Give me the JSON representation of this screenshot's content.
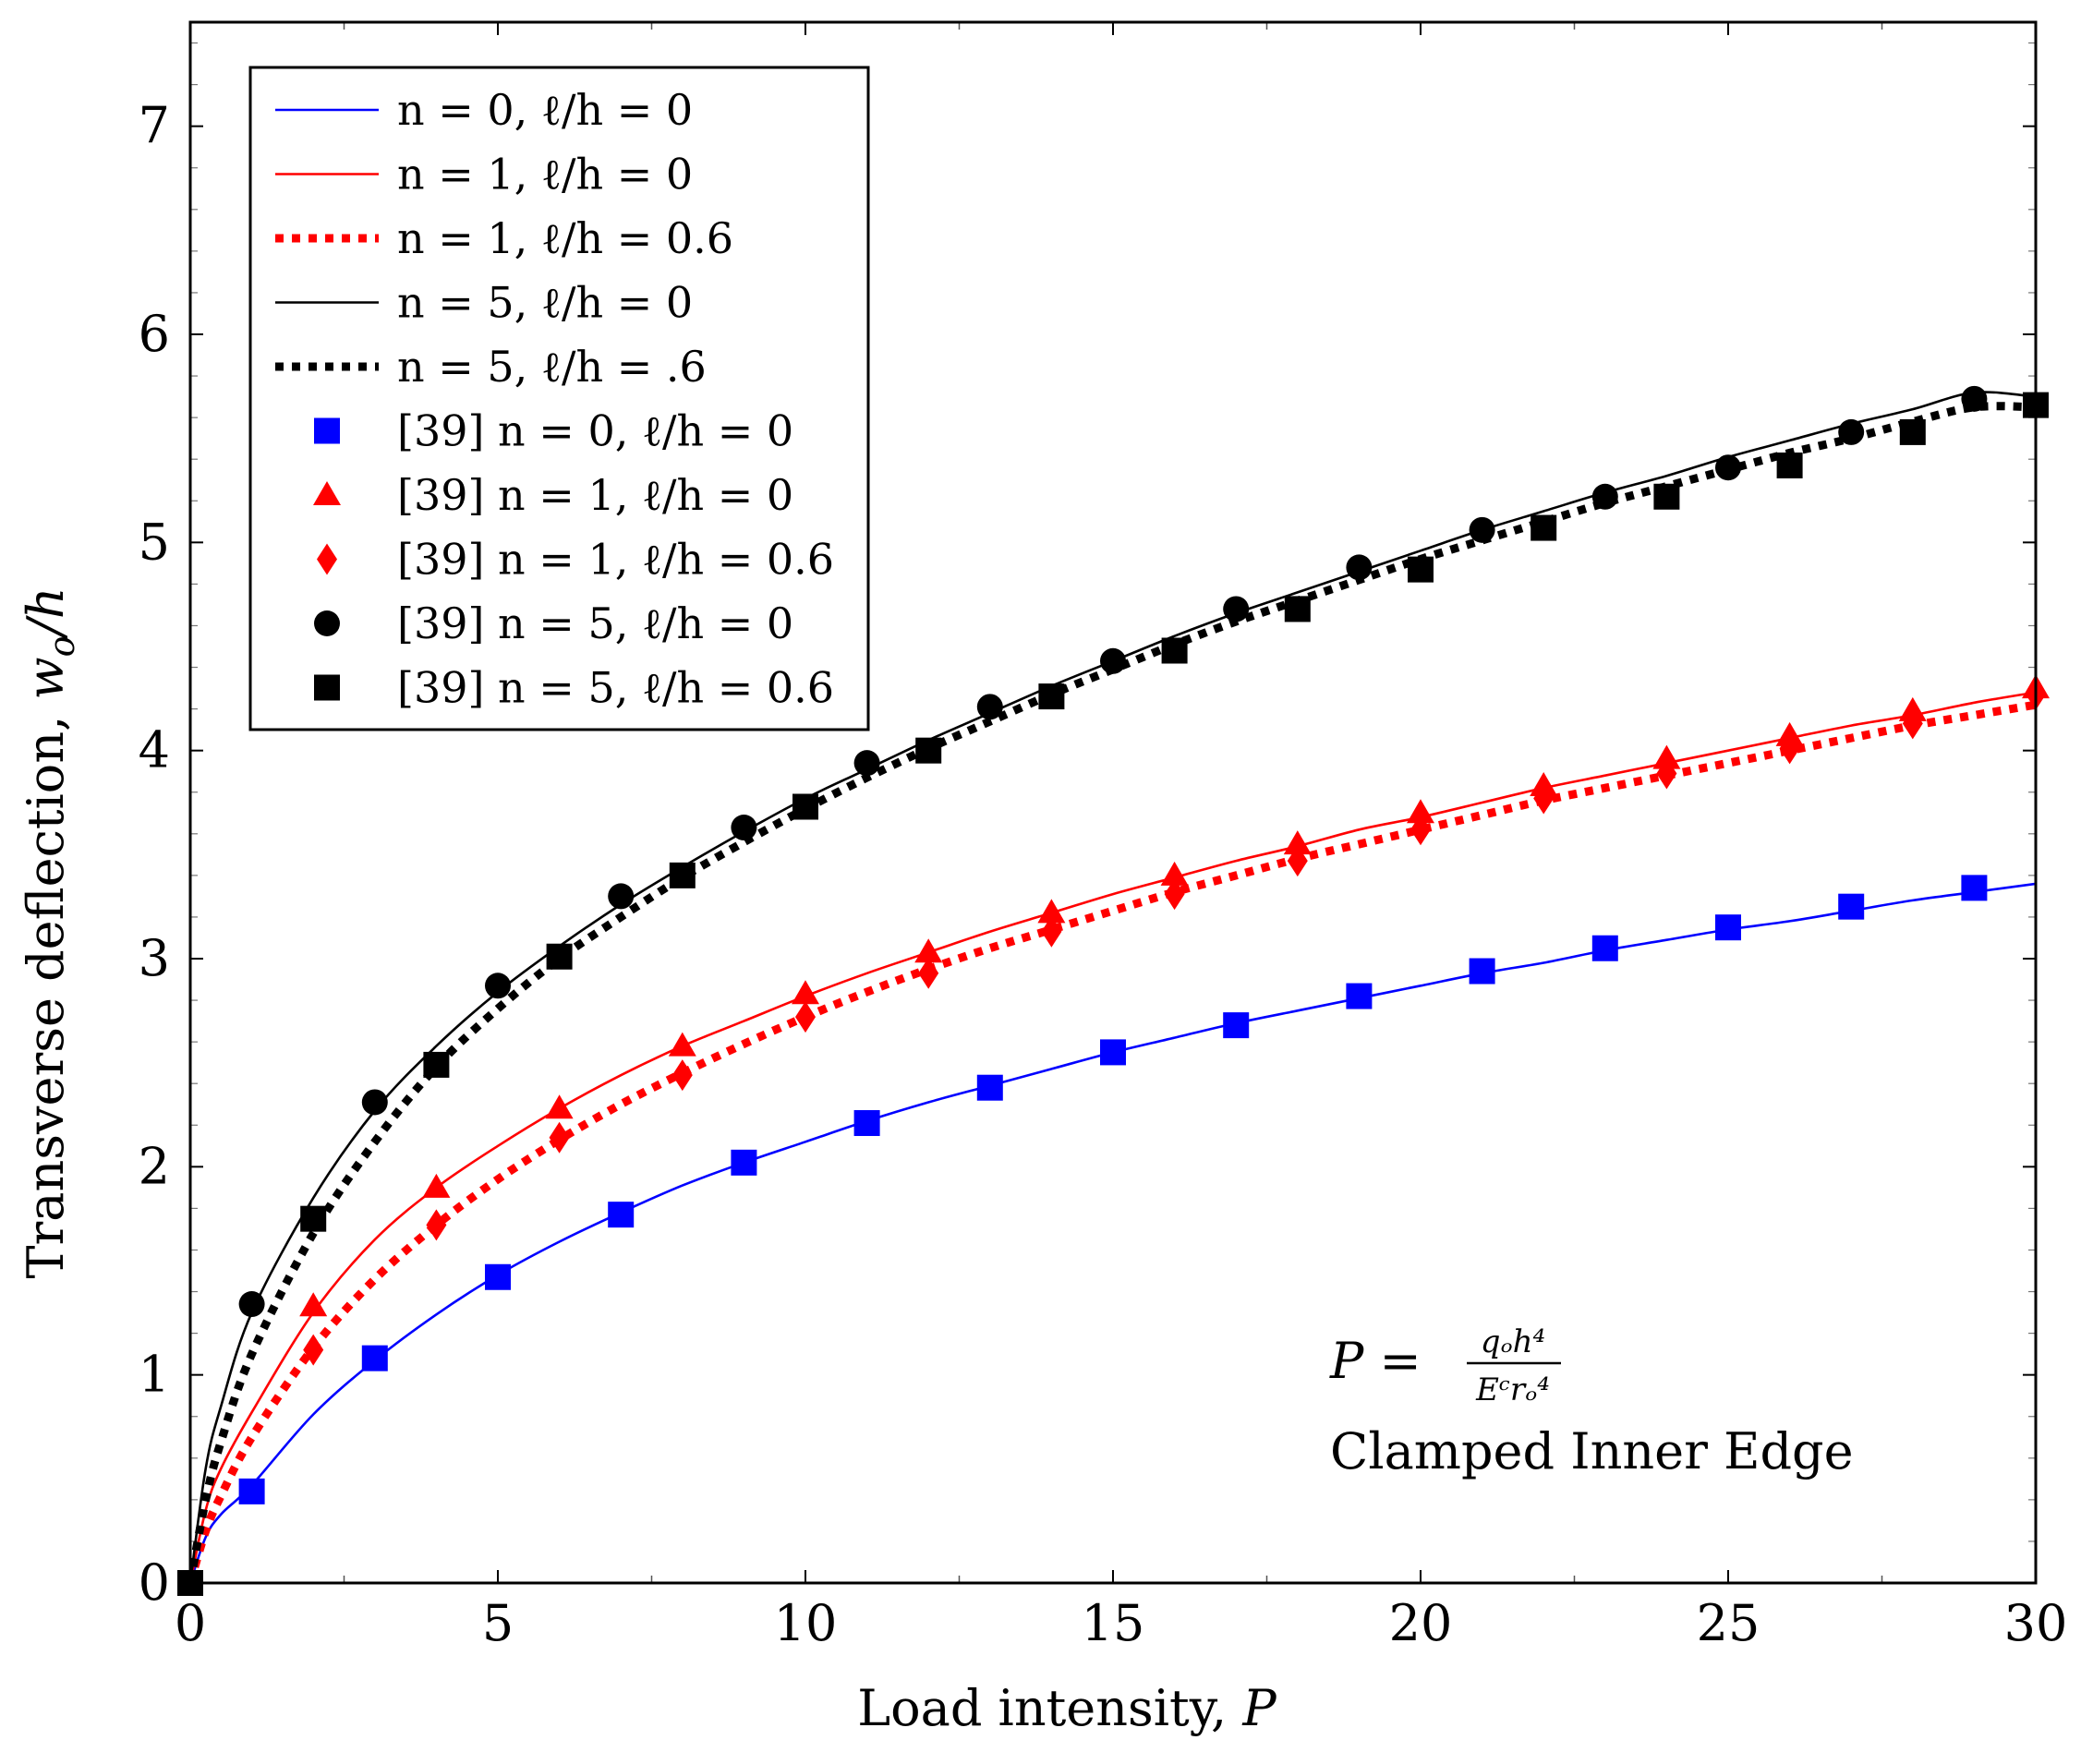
{
  "chart_data": {
    "type": "line",
    "title": "",
    "xlabel": "Load intensity, ",
    "xlabel_var": "P",
    "ylabel": "Transverse deflection, ",
    "ylabel_var": "w",
    "ylabel_sub": "o",
    "ylabel_tail": "/h",
    "xlim": [
      0,
      30
    ],
    "ylim": [
      0,
      7.5
    ],
    "xticks": [
      0,
      5,
      10,
      15,
      20,
      25,
      30
    ],
    "yticks": [
      0,
      1,
      2,
      3,
      4,
      5,
      6,
      7
    ],
    "legend_position": "top-left",
    "series": [
      {
        "name": "n = 0, ℓ/h = 0",
        "color": "#0000ff",
        "style": "solid",
        "x": [
          0,
          0.25,
          0.5,
          1,
          2,
          3,
          4,
          5,
          6,
          7,
          8,
          9,
          10,
          11,
          12,
          13,
          14,
          15,
          16,
          17,
          18,
          19,
          20,
          21,
          22,
          23,
          24,
          25,
          26,
          27,
          28,
          29,
          30
        ],
        "y": [
          0,
          0.22,
          0.33,
          0.47,
          0.81,
          1.07,
          1.29,
          1.48,
          1.64,
          1.78,
          1.91,
          2.02,
          2.12,
          2.22,
          2.31,
          2.39,
          2.47,
          2.55,
          2.62,
          2.69,
          2.75,
          2.81,
          2.87,
          2.93,
          2.98,
          3.04,
          3.09,
          3.14,
          3.18,
          3.23,
          3.28,
          3.32,
          3.36
        ]
      },
      {
        "name": "n = 1, ℓ/h = 0",
        "color": "#ff0000",
        "style": "solid",
        "x": [
          0,
          0.25,
          0.5,
          1,
          2,
          3,
          4,
          5,
          6,
          7,
          8,
          9,
          10,
          11,
          12,
          13,
          14,
          15,
          16,
          17,
          18,
          19,
          20,
          21,
          22,
          23,
          24,
          25,
          26,
          27,
          28,
          29,
          30
        ],
        "y": [
          0,
          0.35,
          0.55,
          0.82,
          1.3,
          1.65,
          1.9,
          2.1,
          2.28,
          2.44,
          2.58,
          2.7,
          2.82,
          2.93,
          3.03,
          3.13,
          3.22,
          3.31,
          3.39,
          3.47,
          3.54,
          3.62,
          3.68,
          3.75,
          3.82,
          3.88,
          3.94,
          4.0,
          4.06,
          4.12,
          4.17,
          4.23,
          4.28
        ]
      },
      {
        "name": "n = 1, ℓ/h = 0.6",
        "color": "#ff0000",
        "style": "dotted",
        "x": [
          0,
          0.25,
          0.5,
          1,
          2,
          3,
          4,
          5,
          6,
          7,
          8,
          9,
          10,
          11,
          12,
          13,
          14,
          15,
          16,
          17,
          18,
          19,
          20,
          21,
          22,
          23,
          24,
          25,
          26,
          27,
          28,
          29,
          30
        ],
        "y": [
          0,
          0.25,
          0.42,
          0.7,
          1.13,
          1.46,
          1.72,
          1.94,
          2.13,
          2.3,
          2.45,
          2.59,
          2.72,
          2.84,
          2.95,
          3.05,
          3.14,
          3.23,
          3.32,
          3.4,
          3.48,
          3.55,
          3.62,
          3.69,
          3.76,
          3.82,
          3.88,
          3.94,
          4.0,
          4.06,
          4.12,
          4.17,
          4.22
        ]
      },
      {
        "name": "n = 5, ℓ/h = 0",
        "color": "#000000",
        "style": "solid",
        "x": [
          0,
          0.25,
          0.5,
          1,
          2,
          3,
          4,
          5,
          6,
          7,
          8,
          9,
          10,
          11,
          12,
          13,
          14,
          15,
          16,
          17,
          18,
          19,
          20,
          21,
          22,
          23,
          24,
          25,
          26,
          27,
          28,
          29,
          30
        ],
        "y": [
          0,
          0.55,
          0.85,
          1.3,
          1.85,
          2.27,
          2.58,
          2.84,
          3.06,
          3.26,
          3.44,
          3.61,
          3.77,
          3.91,
          4.05,
          4.18,
          4.31,
          4.43,
          4.55,
          4.66,
          4.76,
          4.86,
          4.96,
          5.06,
          5.15,
          5.24,
          5.32,
          5.41,
          5.49,
          5.57,
          5.64,
          5.72,
          5.7
        ]
      },
      {
        "name": "n = 5, ℓ/h = .6",
        "color": "#000000",
        "style": "dotted",
        "x": [
          0,
          0.25,
          0.5,
          1,
          2,
          3,
          4,
          5,
          6,
          7,
          8,
          9,
          10,
          11,
          12,
          13,
          14,
          15,
          16,
          17,
          18,
          19,
          20,
          21,
          22,
          23,
          24,
          25,
          26,
          27,
          28,
          29,
          30
        ],
        "y": [
          0,
          0.4,
          0.68,
          1.1,
          1.68,
          2.12,
          2.48,
          2.76,
          3.0,
          3.2,
          3.39,
          3.56,
          3.72,
          3.87,
          4.01,
          4.14,
          4.27,
          4.39,
          4.51,
          4.62,
          4.72,
          4.82,
          4.92,
          5.01,
          5.1,
          5.19,
          5.27,
          5.35,
          5.43,
          5.5,
          5.58,
          5.65,
          5.65
        ]
      }
    ],
    "markers": [
      {
        "name": "[39] n = 0, ℓ/h = 0",
        "color": "#0000ff",
        "shape": "square",
        "x": [
          0,
          1,
          3,
          5,
          7,
          9,
          11,
          13,
          15,
          17,
          19,
          21,
          23,
          25,
          27,
          29
        ],
        "y": [
          0,
          0.44,
          1.08,
          1.47,
          1.77,
          2.02,
          2.21,
          2.38,
          2.55,
          2.68,
          2.82,
          2.94,
          3.05,
          3.15,
          3.25,
          3.34
        ]
      },
      {
        "name": "[39] n = 1, ℓ/h = 0",
        "color": "#ff0000",
        "shape": "triangle",
        "x": [
          2,
          4,
          6,
          8,
          10,
          12,
          14,
          16,
          18,
          20,
          22,
          24,
          26,
          28,
          30
        ],
        "y": [
          1.33,
          1.9,
          2.28,
          2.58,
          2.83,
          3.03,
          3.22,
          3.4,
          3.55,
          3.7,
          3.83,
          3.96,
          4.07,
          4.19,
          4.3
        ]
      },
      {
        "name": "[39] n = 1, ℓ/h = 0.6",
        "color": "#ff0000",
        "shape": "diamond",
        "x": [
          2,
          4,
          6,
          8,
          10,
          12,
          14,
          16,
          18,
          20,
          22,
          24,
          26,
          28,
          30
        ],
        "y": [
          1.12,
          1.72,
          2.14,
          2.44,
          2.72,
          2.93,
          3.13,
          3.31,
          3.47,
          3.62,
          3.77,
          3.89,
          4.01,
          4.13,
          4.27
        ]
      },
      {
        "name": "[39] n = 5, ℓ/h = 0",
        "color": "#000000",
        "shape": "circle",
        "x": [
          1,
          3,
          5,
          7,
          9,
          11,
          13,
          15,
          17,
          19,
          21,
          23,
          25,
          27,
          29
        ],
        "y": [
          1.34,
          2.31,
          2.87,
          3.3,
          3.63,
          3.94,
          4.21,
          4.43,
          4.68,
          4.88,
          5.06,
          5.22,
          5.36,
          5.53,
          5.69
        ]
      },
      {
        "name": "[39] n = 5, ℓ/h = 0.6",
        "color": "#000000",
        "shape": "square",
        "x": [
          0,
          2,
          4,
          6,
          8,
          10,
          12,
          14,
          16,
          18,
          20,
          22,
          24,
          26,
          28,
          30
        ],
        "y": [
          0,
          1.75,
          2.49,
          3.01,
          3.4,
          3.73,
          4.0,
          4.26,
          4.48,
          4.68,
          4.87,
          5.07,
          5.22,
          5.37,
          5.53,
          5.66
        ]
      }
    ],
    "annotation": {
      "formula_lhs": "P =",
      "numerator": "qₒh⁴",
      "denominator": "Eᶜrₒ⁴",
      "note": "Clamped Inner Edge"
    }
  }
}
